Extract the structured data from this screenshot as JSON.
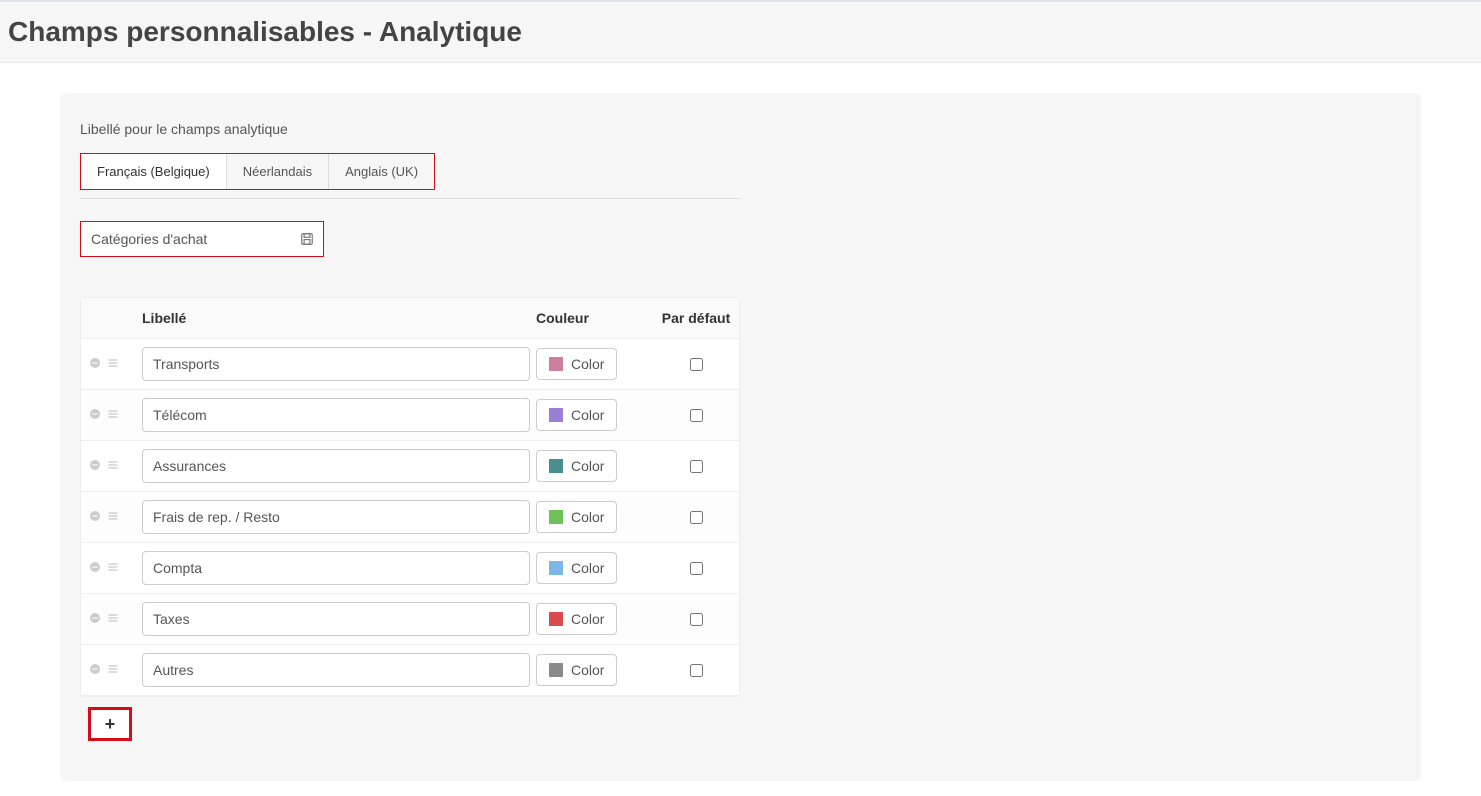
{
  "header": {
    "title": "Champs personnalisables - Analytique"
  },
  "section": {
    "label": "Libellé pour le champs analytique"
  },
  "tabs": [
    {
      "label": "Français (Belgique)",
      "active": true
    },
    {
      "label": "Néerlandais",
      "active": false
    },
    {
      "label": "Anglais (UK)",
      "active": false
    }
  ],
  "fieldName": {
    "value": "Catégories d'achat"
  },
  "table": {
    "columns": {
      "label": "Libellé",
      "color": "Couleur",
      "default": "Par défaut"
    },
    "colorButtonLabel": "Color",
    "rows": [
      {
        "label": "Transports",
        "color": "#cc7fa1",
        "default": false
      },
      {
        "label": "Télécom",
        "color": "#9a7fd6",
        "default": false
      },
      {
        "label": "Assurances",
        "color": "#4a8f8f",
        "default": false
      },
      {
        "label": "Frais de rep. / Resto",
        "color": "#6fc15a",
        "default": false
      },
      {
        "label": "Compta",
        "color": "#7fb6e8",
        "default": false
      },
      {
        "label": "Taxes",
        "color": "#d94a4a",
        "default": false
      },
      {
        "label": "Autres",
        "color": "#8a8a8a",
        "default": false
      }
    ]
  },
  "addButton": {
    "label": "+"
  },
  "colors": {
    "highlight": "#d80c18",
    "panelBg": "#f6f6f6",
    "border": "#ddd",
    "iconMuted": "#bbb"
  }
}
